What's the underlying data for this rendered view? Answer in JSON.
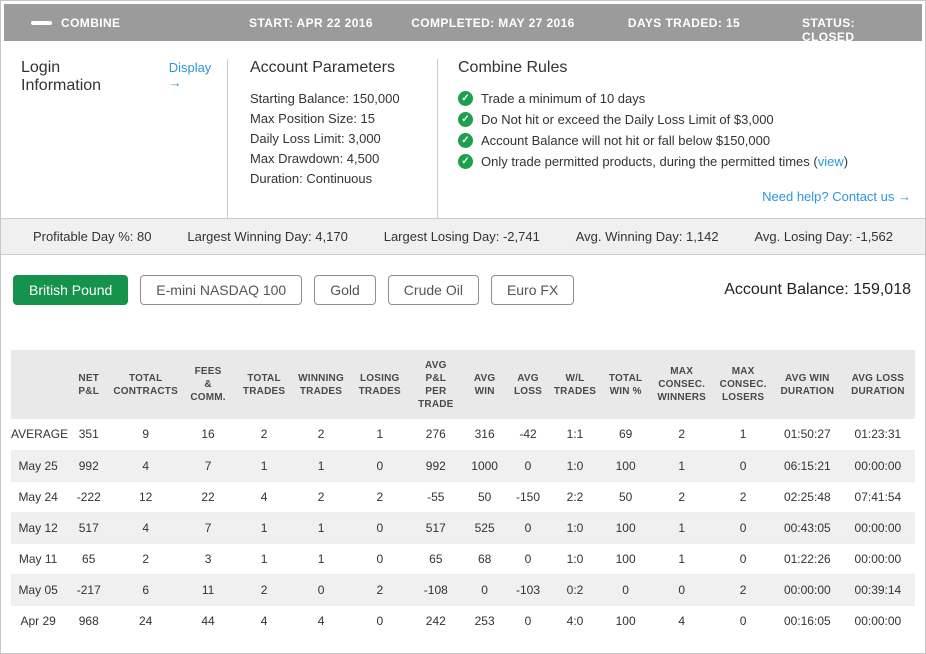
{
  "header": {
    "title": "COMBINE",
    "start": "START: APR 22 2016",
    "completed": "COMPLETED: MAY 27 2016",
    "days_traded": "DAYS TRADED: 15",
    "status": "STATUS: CLOSED"
  },
  "login": {
    "title": "Login Information",
    "display_link": "Display →"
  },
  "account_parameters": {
    "title": "Account Parameters",
    "lines": [
      "Starting Balance: 150,000",
      "Max Position Size: 15",
      "Daily Loss Limit: 3,000",
      "Max Drawdown: 4,500",
      "Duration: Continuous"
    ]
  },
  "combine_rules": {
    "title": "Combine Rules",
    "rules": [
      "Trade a minimum of 10 days",
      "Do Not hit or exceed the Daily Loss Limit of $3,000",
      "Account Balance will not hit or fall below $150,000"
    ],
    "last_rule": {
      "before": "Only trade permitted products, during the permitted times (",
      "link": "view",
      "after": ")"
    },
    "help_link": "Need help? Contact us →"
  },
  "summary_stats": [
    "Profitable Day %: 80",
    "Largest Winning Day: 4,170",
    "Largest Losing Day: -2,741",
    "Avg. Winning Day: 1,142",
    "Avg. Losing Day: -1,562"
  ],
  "products": {
    "active": "British Pound",
    "buttons": [
      "British Pound",
      "E-mini NASDAQ 100",
      "Gold",
      "Crude Oil",
      "Euro FX"
    ]
  },
  "account_balance": "Account Balance: 159,018",
  "table": {
    "columns": [
      "NET\nP&L",
      "TOTAL\nCONTRACTS",
      "FEES\n&\nCOMM.",
      "TOTAL\nTRADES",
      "WINNING\nTRADES",
      "LOSING\nTRADES",
      "AVG\nP&L\nPER\nTRADE",
      "AVG\nWIN",
      "AVG\nLOSS",
      "W/L\nTRADES",
      "TOTAL\nWIN %",
      "MAX\nCONSEC.\nWINNERS",
      "MAX\nCONSEC.\nLOSERS",
      "AVG WIN\nDURATION",
      "AVG LOSS\nDURATION"
    ],
    "rows": [
      {
        "label": "AVERAGE",
        "values": [
          "351",
          "9",
          "16",
          "2",
          "2",
          "1",
          "276",
          "316",
          "-42",
          "1:1",
          "69",
          "2",
          "1",
          "01:50:27",
          "01:23:31"
        ]
      },
      {
        "label": "May 25",
        "values": [
          "992",
          "4",
          "7",
          "1",
          "1",
          "0",
          "992",
          "1000",
          "0",
          "1:0",
          "100",
          "1",
          "0",
          "06:15:21",
          "00:00:00"
        ]
      },
      {
        "label": "May 24",
        "values": [
          "-222",
          "12",
          "22",
          "4",
          "2",
          "2",
          "-55",
          "50",
          "-150",
          "2:2",
          "50",
          "2",
          "2",
          "02:25:48",
          "07:41:54"
        ]
      },
      {
        "label": "May 12",
        "values": [
          "517",
          "4",
          "7",
          "1",
          "1",
          "0",
          "517",
          "525",
          "0",
          "1:0",
          "100",
          "1",
          "0",
          "00:43:05",
          "00:00:00"
        ]
      },
      {
        "label": "May 11",
        "values": [
          "65",
          "2",
          "3",
          "1",
          "1",
          "0",
          "65",
          "68",
          "0",
          "1:0",
          "100",
          "1",
          "0",
          "01:22:26",
          "00:00:00"
        ]
      },
      {
        "label": "May 05",
        "values": [
          "-217",
          "6",
          "11",
          "2",
          "0",
          "2",
          "-108",
          "0",
          "-103",
          "0:2",
          "0",
          "0",
          "2",
          "00:00:00",
          "00:39:14"
        ]
      },
      {
        "label": "Apr 29",
        "values": [
          "968",
          "24",
          "44",
          "4",
          "4",
          "0",
          "242",
          "253",
          "0",
          "4:0",
          "100",
          "4",
          "0",
          "00:16:05",
          "00:00:00"
        ]
      }
    ]
  },
  "icons": {
    "collapse": "minus-icon",
    "rule_check": "check-circle-icon",
    "check_glyph": "✓"
  },
  "colors": {
    "header_bar": "#9b9b9b",
    "accent_blue": "#2b98d9",
    "active_button_green": "#15934d",
    "check_green": "#1ca04c",
    "stats_bar_bg": "#f0f0f0",
    "table_header_bg": "#e9e9e9",
    "alt_row_bg": "#f0f0f0"
  }
}
